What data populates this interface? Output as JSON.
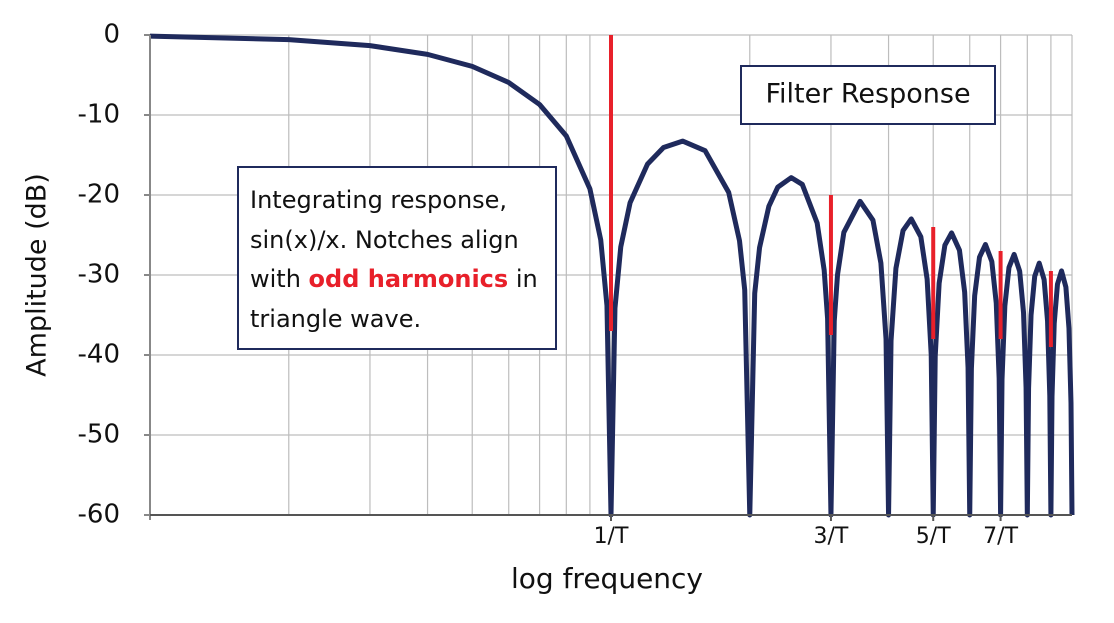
{
  "chart_data": {
    "type": "line",
    "title": "Filter Response",
    "xlabel": "log frequency",
    "ylabel": "Amplitude (dB)",
    "xscale": "log",
    "xlim": [
      0.1,
      10
    ],
    "ylim": [
      -60,
      0
    ],
    "yticks": [
      -60,
      -50,
      -40,
      -30,
      -20,
      -10,
      0
    ],
    "xticks": [
      {
        "value": 1,
        "label": "1/T"
      },
      {
        "value": 3,
        "label": "3/T"
      },
      {
        "value": 5,
        "label": "5/T"
      },
      {
        "value": 7,
        "label": "7/T"
      }
    ],
    "xgrid": [
      0.1,
      0.2,
      0.3,
      0.4,
      0.5,
      0.6,
      0.7,
      0.8,
      0.9,
      1,
      2,
      3,
      4,
      5,
      6,
      7,
      8,
      9,
      10
    ],
    "grid": true,
    "series": [
      {
        "name": "sin(x)/x",
        "color": "#1f2a5c",
        "x": [
          0.1,
          0.2,
          0.3,
          0.4,
          0.5,
          0.6,
          0.7,
          0.8,
          0.9,
          0.95,
          0.98,
          1,
          1.02,
          1.05,
          1.1,
          1.2,
          1.3,
          1.43,
          1.6,
          1.8,
          1.9,
          1.95,
          2,
          2.05,
          2.1,
          2.2,
          2.3,
          2.46,
          2.6,
          2.8,
          2.9,
          2.95,
          3,
          3.05,
          3.1,
          3.2,
          3.47,
          3.7,
          3.85,
          3.95,
          4,
          4.05,
          4.15,
          4.3,
          4.48,
          4.7,
          4.85,
          4.95,
          5,
          5.05,
          5.15,
          5.3,
          5.48,
          5.7,
          5.85,
          5.95,
          6,
          6.05,
          6.15,
          6.3,
          6.49,
          6.7,
          6.85,
          6.95,
          7,
          7.05,
          7.15,
          7.3,
          7.49,
          7.7,
          7.85,
          7.95,
          8,
          8.05,
          8.15,
          8.3,
          8.49,
          8.7,
          8.85,
          8.95,
          9,
          9.05,
          9.15,
          9.3,
          9.49,
          9.7,
          9.85,
          9.95,
          10
        ],
        "values": [
          -0.14,
          -0.58,
          -1.33,
          -2.42,
          -3.92,
          -5.94,
          -8.69,
          -12.62,
          -19.23,
          -25.61,
          -33.81,
          -60,
          -34.15,
          -26.48,
          -20.97,
          -16.14,
          -14.06,
          -13.26,
          -14.46,
          -19.67,
          -25.72,
          -31.86,
          -60,
          -32.29,
          -26.59,
          -21.41,
          -19.02,
          -17.83,
          -18.68,
          -23.5,
          -29.39,
          -35.45,
          -60,
          -35.75,
          -29.97,
          -24.66,
          -20.79,
          -23.15,
          -28.51,
          -37.99,
          -60,
          -38.21,
          -29.17,
          -24.45,
          -22.99,
          -25.23,
          -30.52,
          -39.95,
          -60,
          -40.12,
          -31.03,
          -26.27,
          -24.74,
          -26.9,
          -32.15,
          -41.55,
          -60,
          -41.69,
          -32.58,
          -27.77,
          -26.19,
          -28.31,
          -33.52,
          -42.9,
          -60,
          -43.02,
          -33.89,
          -29.05,
          -27.43,
          -29.52,
          -34.7,
          -44.07,
          -60,
          -44.18,
          -35.02,
          -30.17,
          -28.52,
          -30.58,
          -35.74,
          -45.1,
          -60,
          -45.19,
          -36.03,
          -31.15,
          -29.49,
          -31.52,
          -36.67,
          -46.01,
          -60
        ]
      }
    ],
    "harmonics": {
      "color": "#e8202a",
      "x": [
        1,
        3,
        5,
        7,
        9
      ],
      "high": [
        0,
        -20,
        -24,
        -27,
        -29.5
      ],
      "low": [
        -37,
        -37.5,
        -38,
        -38,
        -39
      ]
    },
    "note": {
      "line1": "Integrating response,",
      "line2": "sin(x)/x.  Notches align",
      "line3_before": "with ",
      "highlight": "odd harmonics",
      "line3_after": " in",
      "line4": "triangle wave.",
      "highlight_color": "#e8202a"
    }
  }
}
